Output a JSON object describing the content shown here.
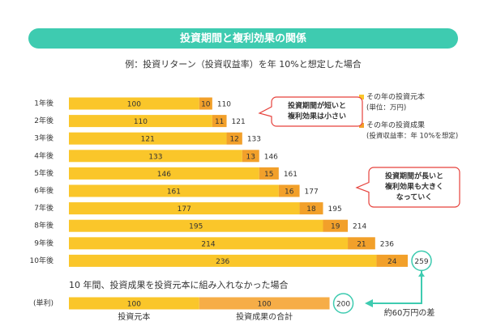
{
  "chart_data": [
    {
      "type": "bar",
      "orientation": "horizontal",
      "stacked": true,
      "title": "投資期間と複利効果の関係",
      "subtitle": "例：投資リターン（投資収益率）を年 10%と想定した場合",
      "categories": [
        "1年後",
        "2年後",
        "3年後",
        "4年後",
        "5年後",
        "6年後",
        "7年後",
        "8年後",
        "9年後",
        "10年後"
      ],
      "series": [
        {
          "name": "その年の投資元本",
          "note": "(単位：万円)",
          "color": "#fac62a",
          "values": [
            100,
            110,
            121,
            133,
            146,
            161,
            177,
            195,
            214,
            236
          ]
        },
        {
          "name": "その年の投資成果",
          "note": "(投資収益率：年 10%を想定)",
          "color": "#f2a02a",
          "values": [
            10,
            11,
            12,
            13,
            15,
            16,
            18,
            19,
            21,
            24
          ]
        }
      ],
      "totals": [
        110,
        121,
        133,
        146,
        161,
        177,
        195,
        214,
        236,
        259
      ],
      "xlim": [
        0,
        260
      ],
      "annotations": [
        {
          "lines": [
            "投資期間が短いと",
            "複利効果は小さい"
          ]
        },
        {
          "lines": [
            "投資期間が長いと",
            "複利効果も大きく",
            "なっていく"
          ]
        }
      ]
    },
    {
      "type": "bar",
      "orientation": "horizontal",
      "stacked": true,
      "title": "10 年間、投資成果を投資元本に組み入れなかった場合",
      "categories": [
        "(単利)"
      ],
      "series": [
        {
          "name": "投資元本",
          "color": "#fac62a",
          "values": [
            100
          ]
        },
        {
          "name": "投資成果の合計",
          "color": "#f6ad47",
          "values": [
            100
          ]
        }
      ],
      "totals": [
        200
      ],
      "xlim": [
        0,
        260
      ],
      "annotation": "約60万円の差"
    }
  ]
}
